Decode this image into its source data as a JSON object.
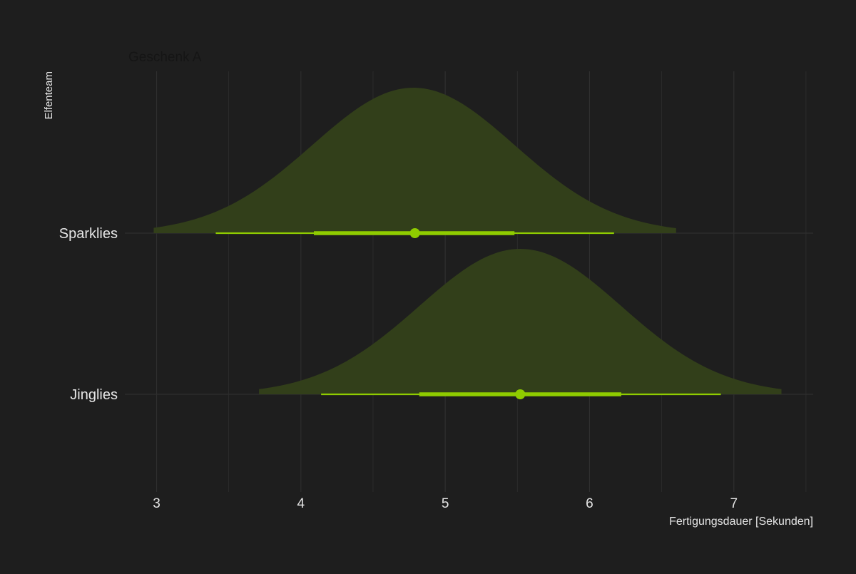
{
  "chart_data": {
    "type": "area",
    "subtitle": "Geschenk A",
    "xlabel": "Fertigungsdauer [Sekunden]",
    "ylabel": "Elfenteam",
    "xlim": [
      2.78,
      7.55
    ],
    "x_ticks": [
      3,
      4,
      5,
      6,
      7
    ],
    "x_minor_ticks": [
      3.5,
      4.5,
      5.5,
      6.5,
      7.5
    ],
    "grid": true,
    "categories": [
      "Sparklies",
      "Jinglies"
    ],
    "series": [
      {
        "name": "Sparklies",
        "density_range": [
          2.98,
          6.6
        ],
        "mean": 4.78,
        "sd": 0.7,
        "interval_outer": [
          3.41,
          6.17
        ],
        "interval_inner": [
          4.09,
          5.48
        ],
        "point": 4.79
      },
      {
        "name": "Jinglies",
        "density_range": [
          3.71,
          7.33
        ],
        "mean": 5.52,
        "sd": 0.7,
        "interval_outer": [
          4.14,
          6.91
        ],
        "interval_inner": [
          4.82,
          6.22
        ],
        "point": 5.52
      }
    ],
    "colors": {
      "background": "#1e1e1e",
      "grid": "#2f2f2f",
      "density_fill": "#323f1a",
      "interval": "#8fcc00",
      "text": "#e6e6e6",
      "subtitle": "#151515"
    }
  }
}
